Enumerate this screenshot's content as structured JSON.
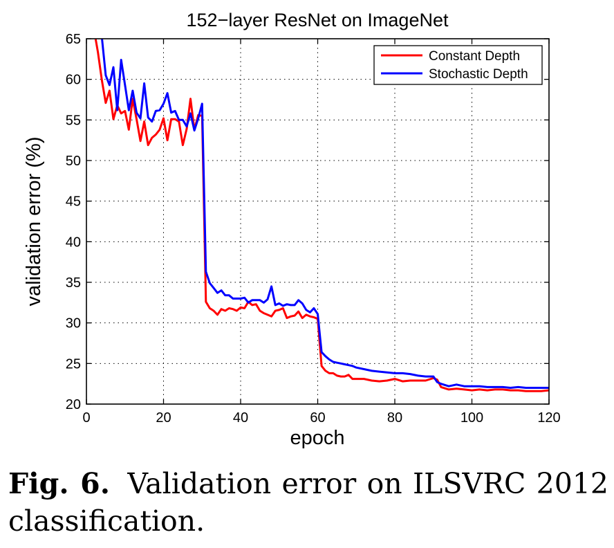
{
  "chart_data": {
    "type": "line",
    "title": "152−layer ResNet on ImageNet",
    "xlabel": "epoch",
    "ylabel": "validation error (%)",
    "xlim": [
      0,
      120
    ],
    "ylim": [
      20,
      65
    ],
    "xticks": [
      0,
      20,
      40,
      60,
      80,
      100,
      120
    ],
    "yticks": [
      20,
      25,
      30,
      35,
      40,
      45,
      50,
      55,
      60,
      65
    ],
    "grid": true,
    "legend_position": "top-right",
    "series": [
      {
        "name": "Constant Depth",
        "color": "#ff0000",
        "x": [
          2,
          3,
          4,
          5,
          6,
          7,
          8,
          9,
          10,
          11,
          12,
          13,
          14,
          15,
          16,
          17,
          18,
          19,
          20,
          21,
          22,
          23,
          24,
          25,
          26,
          27,
          28,
          29,
          30,
          31,
          32,
          33,
          34,
          35,
          36,
          37,
          38,
          39,
          40,
          41,
          42,
          43,
          44,
          45,
          46,
          47,
          48,
          49,
          50,
          51,
          52,
          53,
          54,
          55,
          56,
          57,
          58,
          59,
          60,
          61,
          62,
          63,
          64,
          65,
          66,
          67,
          68,
          69,
          70,
          72,
          74,
          76,
          78,
          80,
          82,
          84,
          86,
          88,
          90,
          91,
          92,
          94,
          96,
          98,
          100,
          102,
          104,
          106,
          108,
          110,
          112,
          114,
          116,
          118,
          120
        ],
        "y": [
          66,
          63.3,
          59.9,
          57.1,
          58.6,
          55.1,
          56.8,
          55.8,
          56.1,
          53.8,
          57.6,
          55.1,
          52.4,
          54.8,
          51.9,
          52.8,
          53.2,
          53.8,
          55.2,
          52.5,
          55.1,
          55.1,
          54.8,
          51.9,
          53.9,
          57.6,
          53.8,
          55.6,
          55.5,
          32.6,
          31.8,
          31.5,
          31,
          31.7,
          31.5,
          31.8,
          31.7,
          31.5,
          31.9,
          31.8,
          32.6,
          32.2,
          32.3,
          31.5,
          31.2,
          31,
          30.8,
          31.5,
          31.6,
          31.8,
          30.6,
          30.8,
          30.9,
          31.4,
          30.6,
          31,
          30.8,
          30.7,
          30.5,
          24.7,
          24.1,
          23.8,
          23.8,
          23.5,
          23.4,
          23.4,
          23.6,
          23.1,
          23.1,
          23.1,
          22.9,
          22.8,
          22.9,
          23.1,
          22.8,
          22.9,
          22.9,
          22.9,
          23.2,
          23,
          22.1,
          21.8,
          21.9,
          21.8,
          21.7,
          21.8,
          21.7,
          21.8,
          21.8,
          21.7,
          21.7,
          21.6,
          21.6,
          21.6,
          21.7
        ]
      },
      {
        "name": "Stochastic Depth",
        "color": "#0000ff",
        "x": [
          2,
          3,
          4,
          5,
          6,
          7,
          8,
          9,
          10,
          11,
          12,
          13,
          14,
          15,
          16,
          17,
          18,
          19,
          20,
          21,
          22,
          23,
          24,
          25,
          26,
          27,
          28,
          29,
          30,
          31,
          32,
          33,
          34,
          35,
          36,
          37,
          38,
          39,
          40,
          41,
          42,
          43,
          44,
          45,
          46,
          47,
          48,
          49,
          50,
          51,
          52,
          53,
          54,
          55,
          56,
          57,
          58,
          59,
          60,
          61,
          62,
          63,
          64,
          65,
          66,
          67,
          68,
          69,
          70,
          72,
          74,
          76,
          78,
          80,
          82,
          84,
          86,
          88,
          90,
          91,
          92,
          94,
          96,
          98,
          100,
          102,
          104,
          106,
          108,
          110,
          112,
          114,
          116,
          118,
          120
        ],
        "y": [
          69,
          67.5,
          65.2,
          60.5,
          59.3,
          61.5,
          56.2,
          62.4,
          59.3,
          56.2,
          58.6,
          55.9,
          55.2,
          59.5,
          55.3,
          54.8,
          56.1,
          56.2,
          57,
          58.3,
          55.9,
          56.1,
          55,
          55,
          54.2,
          55.8,
          53.7,
          55.2,
          57,
          36.3,
          34.9,
          34.3,
          33.7,
          34,
          33.4,
          33.4,
          33,
          33,
          33,
          33.1,
          32.5,
          32.8,
          32.8,
          32.8,
          32.5,
          32.9,
          34.5,
          32.2,
          32.4,
          32.1,
          32.3,
          32.2,
          32.2,
          32.8,
          32.4,
          31.6,
          31.3,
          31.8,
          31.1,
          26.4,
          25.9,
          25.5,
          25.2,
          25.1,
          25,
          24.9,
          24.8,
          24.7,
          24.5,
          24.3,
          24.1,
          24,
          23.9,
          23.8,
          23.8,
          23.7,
          23.5,
          23.4,
          23.4,
          22.7,
          22.5,
          22.2,
          22.4,
          22.2,
          22.2,
          22.2,
          22.1,
          22.1,
          22.1,
          22,
          22.1,
          22,
          22,
          22,
          22
        ]
      }
    ]
  },
  "caption": {
    "label": "Fig. 6.",
    "text": "Validation error on ILSVRC 2012 classification."
  }
}
